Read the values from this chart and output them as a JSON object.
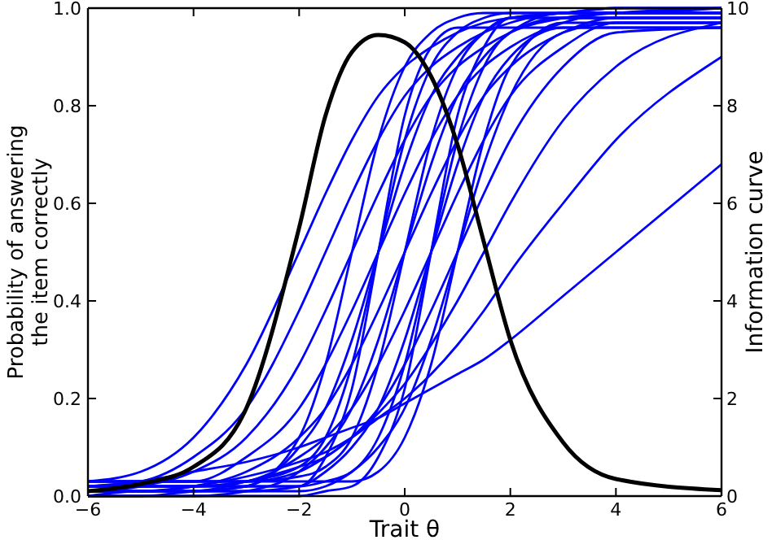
{
  "chart_data": {
    "type": "line",
    "xlabel": "Trait θ",
    "ylabel": "Probability of answering\nthe item correctly",
    "y2label": "Information curve",
    "x": [
      -6,
      -5,
      -4,
      -3,
      -2,
      -1.5,
      -1,
      -0.5,
      0,
      0.5,
      1,
      1.5,
      2,
      3,
      4,
      6
    ],
    "xlim": [
      -6,
      6
    ],
    "xticks": [
      {
        "value": -6,
        "label": "−6"
      },
      {
        "value": -4,
        "label": "−4"
      },
      {
        "value": -2,
        "label": "−2"
      },
      0,
      2,
      4,
      6
    ],
    "ylim": [
      0,
      1
    ],
    "yticks": [
      {
        "value": 0,
        "label": "0.0"
      },
      0.2,
      0.4,
      0.6,
      0.8,
      {
        "value": 1,
        "label": "1.0"
      }
    ],
    "y2lim": [
      0,
      10
    ],
    "y2ticks": [
      0,
      2,
      4,
      6,
      8,
      10
    ],
    "grid": false,
    "line_style": "solid",
    "series": [
      {
        "color": "#0000ff",
        "values": [
          0.03,
          0.05,
          0.12,
          0.27,
          0.5,
          0.62,
          0.73,
          0.82,
          0.88,
          0.92,
          0.95,
          0.97,
          0.98,
          0.99,
          1.0,
          1.0
        ]
      },
      {
        "color": "#0000ff",
        "values": [
          0.02,
          0.03,
          0.08,
          0.18,
          0.38,
          0.5,
          0.62,
          0.73,
          0.82,
          0.88,
          0.92,
          0.95,
          0.97,
          0.99,
          0.99,
          1.0
        ]
      },
      {
        "color": "#0000ff",
        "values": [
          0.01,
          0.02,
          0.05,
          0.12,
          0.27,
          0.38,
          0.5,
          0.62,
          0.73,
          0.82,
          0.88,
          0.92,
          0.95,
          0.98,
          0.99,
          1.0
        ]
      },
      {
        "color": "#0000ff",
        "values": [
          0.01,
          0.01,
          0.01,
          0.02,
          0.12,
          0.27,
          0.5,
          0.73,
          0.88,
          0.95,
          0.98,
          0.99,
          0.99,
          0.99,
          0.99,
          0.99
        ]
      },
      {
        "color": "#0000ff",
        "values": [
          0,
          0,
          0.01,
          0.02,
          0.1,
          0.18,
          0.32,
          0.5,
          0.68,
          0.82,
          0.9,
          0.95,
          0.98,
          0.99,
          1.0,
          1.0
        ]
      },
      {
        "color": "#0000ff",
        "values": [
          0.02,
          0.02,
          0.02,
          0.03,
          0.06,
          0.12,
          0.27,
          0.5,
          0.73,
          0.88,
          0.95,
          0.98,
          0.99,
          0.99,
          0.99,
          0.99
        ]
      },
      {
        "color": "#0000ff",
        "values": [
          0.03,
          0.03,
          0.03,
          0.08,
          0.18,
          0.27,
          0.38,
          0.5,
          0.62,
          0.73,
          0.82,
          0.88,
          0.92,
          0.97,
          0.99,
          0.99
        ]
      },
      {
        "color": "#0000ff",
        "values": [
          0.03,
          0.03,
          0.03,
          0.03,
          0.04,
          0.06,
          0.12,
          0.27,
          0.5,
          0.73,
          0.88,
          0.95,
          0.98,
          0.98,
          0.98,
          0.98
        ]
      },
      {
        "color": "#0000ff",
        "values": [
          0,
          0,
          0,
          0.01,
          0.05,
          0.1,
          0.18,
          0.32,
          0.5,
          0.68,
          0.82,
          0.9,
          0.95,
          0.99,
          0.99,
          0.99
        ]
      },
      {
        "color": "#0000ff",
        "values": [
          0.01,
          0.01,
          0.02,
          0.05,
          0.12,
          0.18,
          0.27,
          0.38,
          0.5,
          0.62,
          0.73,
          0.82,
          0.88,
          0.95,
          0.98,
          0.98
        ]
      },
      {
        "color": "#0000ff",
        "values": [
          0,
          0,
          0,
          0,
          0,
          0.01,
          0.02,
          0.08,
          0.22,
          0.5,
          0.78,
          0.92,
          0.98,
          0.98,
          0.98,
          0.98
        ]
      },
      {
        "color": "#0000ff",
        "values": [
          0.02,
          0.02,
          0.02,
          0.02,
          0.02,
          0.03,
          0.05,
          0.12,
          0.27,
          0.5,
          0.73,
          0.88,
          0.95,
          0.98,
          0.98,
          0.98
        ]
      },
      {
        "color": "#0000ff",
        "values": [
          0.01,
          0.01,
          0.01,
          0.01,
          0.02,
          0.05,
          0.1,
          0.18,
          0.32,
          0.5,
          0.68,
          0.82,
          0.9,
          0.96,
          0.96,
          0.96
        ]
      },
      {
        "color": "#0000ff",
        "values": [
          0.02,
          0.02,
          0.02,
          0.03,
          0.08,
          0.12,
          0.18,
          0.27,
          0.38,
          0.5,
          0.62,
          0.73,
          0.82,
          0.92,
          0.97,
          0.97
        ]
      },
      {
        "color": "#0000ff",
        "values": [
          0.03,
          0.03,
          0.03,
          0.03,
          0.03,
          0.03,
          0.03,
          0.05,
          0.12,
          0.27,
          0.5,
          0.73,
          0.88,
          0.97,
          0.97,
          0.97
        ]
      },
      {
        "color": "#0000ff",
        "values": [
          0.01,
          0.01,
          0.01,
          0.01,
          0.01,
          0.02,
          0.05,
          0.1,
          0.18,
          0.32,
          0.5,
          0.68,
          0.82,
          0.95,
          0.97,
          0.97
        ]
      },
      {
        "color": "#0000ff",
        "values": [
          0.03,
          0.03,
          0.03,
          0.03,
          0.05,
          0.08,
          0.12,
          0.18,
          0.27,
          0.38,
          0.5,
          0.62,
          0.73,
          0.88,
          0.95,
          0.96
        ]
      },
      {
        "color": "#0000ff",
        "values": [
          0.02,
          0.03,
          0.05,
          0.07,
          0.1,
          0.12,
          0.14,
          0.16,
          0.19,
          0.22,
          0.25,
          0.28,
          0.32,
          0.41,
          0.5,
          0.68
        ]
      },
      {
        "color": "#0000ff",
        "values": [
          0.01,
          0.01,
          0.02,
          0.04,
          0.07,
          0.09,
          0.12,
          0.16,
          0.2,
          0.25,
          0.31,
          0.38,
          0.46,
          0.6,
          0.73,
          0.9
        ]
      },
      {
        "color": "#0000ff",
        "values": [
          0,
          0.01,
          0.01,
          0.03,
          0.06,
          0.08,
          0.12,
          0.17,
          0.23,
          0.31,
          0.4,
          0.5,
          0.6,
          0.77,
          0.88,
          0.97
        ]
      },
      {
        "color": "#0000ff",
        "values": [
          0.02,
          0.02,
          0.02,
          0.02,
          0.02,
          0.08,
          0.22,
          0.5,
          0.78,
          0.92,
          0.96,
          0.96,
          0.96,
          0.96,
          0.96,
          0.96
        ]
      },
      {
        "color": "#000000",
        "axis": "y2",
        "values": [
          0.1,
          0.25,
          0.6,
          1.8,
          5.5,
          7.8,
          9.1,
          9.45,
          9.3,
          8.6,
          7.2,
          5.2,
          3.2,
          1.1,
          0.35,
          0.12
        ]
      }
    ]
  }
}
